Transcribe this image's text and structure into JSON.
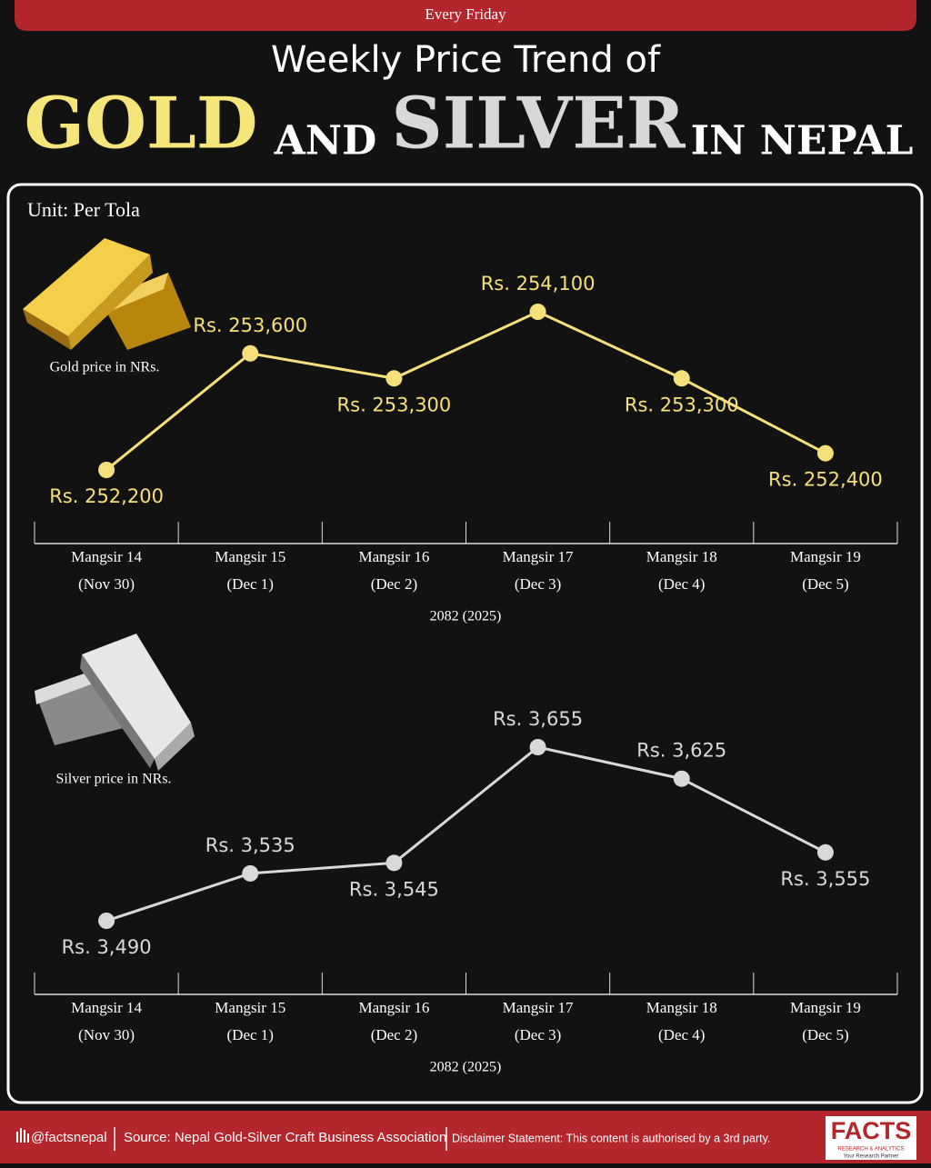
{
  "header": {
    "tag": "Every Friday",
    "title_line": "Weekly Price Trend of",
    "gold_word": "GOLD",
    "and_word": "AND",
    "silver_word": "SILVER",
    "tail_words": "IN NEPAL"
  },
  "unit": "Unit: Per Tola",
  "chart_data": [
    {
      "type": "line",
      "categories": [
        "Mangsir 14",
        "Mangsir 15",
        "Mangsir 16",
        "Mangsir 17",
        "Mangsir 18",
        "Mangsir 19"
      ],
      "dates": [
        "(Nov 30)",
        "(Dec 1)",
        "(Dec 2)",
        "(Dec 3)",
        "(Dec 4)",
        "(Dec 5)"
      ],
      "xlabel": "2082 (2025)",
      "series": [
        {
          "name": "Gold price in NRs.",
          "color": "#f6e07a",
          "values": [
            252200,
            253600,
            253300,
            254100,
            253300,
            252400
          ],
          "value_labels": [
            "Rs. 252,200",
            "Rs. 253,600",
            "Rs. 253,300",
            "Rs. 254,100",
            "Rs. 253,300",
            "Rs. 252,400"
          ]
        }
      ]
    },
    {
      "type": "line",
      "categories": [
        "Mangsir 14",
        "Mangsir 15",
        "Mangsir 16",
        "Mangsir 17",
        "Mangsir 18",
        "Mangsir 19"
      ],
      "dates": [
        "(Nov 30)",
        "(Dec 1)",
        "(Dec 2)",
        "(Dec 3)",
        "(Dec 4)",
        "(Dec 5)"
      ],
      "xlabel": "2082 (2025)",
      "series": [
        {
          "name": "Silver price in NRs.",
          "color": "#d9d9d9",
          "values": [
            3490,
            3535,
            3545,
            3655,
            3625,
            3555
          ],
          "value_labels": [
            "Rs. 3,490",
            "Rs. 3,535",
            "Rs. 3,545",
            "Rs. 3,655",
            "Rs. 3,625",
            "Rs. 3,555"
          ]
        }
      ]
    }
  ],
  "footer": {
    "handle": "@factsnepal",
    "source": "Source: Nepal Gold-Silver Craft Business Association",
    "disclaimer": "Disclaimer Statement: This content is authorised by a 3rd party.",
    "logo": "FACTS",
    "logo_sub": "RESEARCH & ANALYTICS",
    "logo_tag": "Your Research Partner"
  }
}
